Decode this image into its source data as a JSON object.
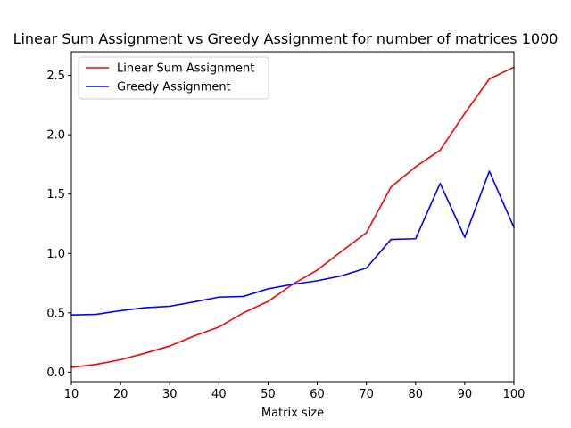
{
  "chart_data": {
    "type": "line",
    "title": "Linear Sum Assignment vs Greedy Assignment for number of matrices 1000",
    "xlabel": "Matrix size",
    "ylabel": "",
    "xlim": [
      10,
      100
    ],
    "ylim": [
      -0.08,
      2.7
    ],
    "xticks": [
      10,
      20,
      30,
      40,
      50,
      60,
      70,
      80,
      90,
      100
    ],
    "yticks": [
      0.0,
      0.5,
      1.0,
      1.5,
      2.0,
      2.5
    ],
    "ytick_labels": [
      "0.0",
      "0.5",
      "1.0",
      "1.5",
      "2.0",
      "2.5"
    ],
    "grid": false,
    "legend_position": "upper-left",
    "x": [
      10,
      15,
      20,
      25,
      30,
      35,
      40,
      45,
      50,
      55,
      60,
      65,
      70,
      75,
      80,
      85,
      90,
      95,
      100
    ],
    "series": [
      {
        "name": "Linear Sum Assignment",
        "color": "#ff0000",
        "values": [
          0.04,
          0.065,
          0.105,
          0.16,
          0.22,
          0.305,
          0.38,
          0.5,
          0.595,
          0.74,
          0.86,
          1.02,
          1.175,
          1.56,
          1.73,
          1.87,
          2.18,
          2.47,
          2.57
        ]
      },
      {
        "name": "Greedy Assignment",
        "color": "#0000ff",
        "values": [
          0.482,
          0.487,
          0.518,
          0.543,
          0.555,
          0.592,
          0.632,
          0.638,
          0.702,
          0.74,
          0.77,
          0.812,
          0.877,
          1.118,
          1.124,
          1.59,
          1.136,
          1.693,
          1.22
        ]
      }
    ]
  }
}
